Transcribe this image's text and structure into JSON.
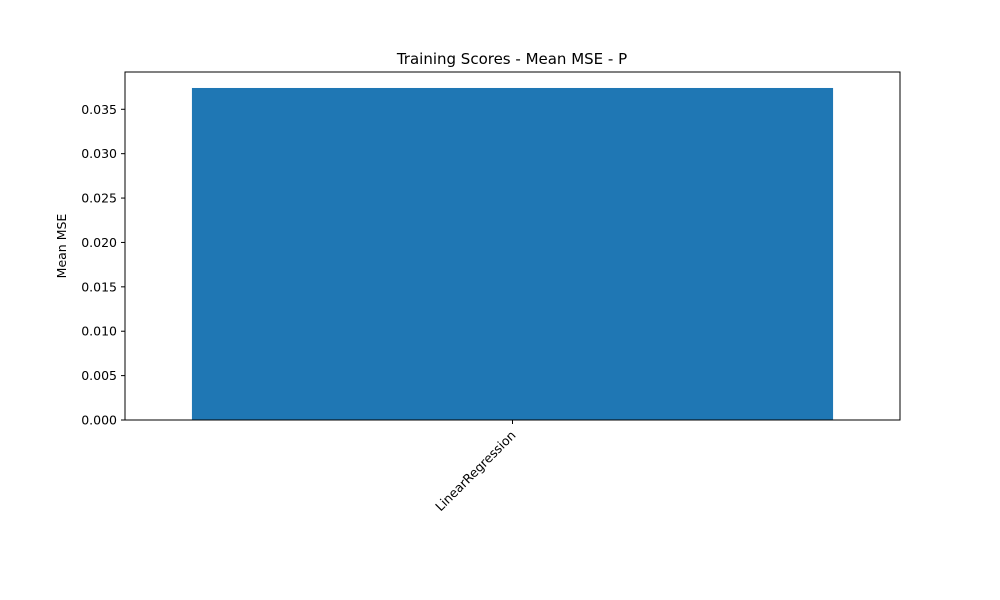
{
  "chart_data": {
    "type": "bar",
    "title": "Training Scores - Mean MSE - P",
    "xlabel": "",
    "ylabel": "Mean MSE",
    "categories": [
      "LinearRegression"
    ],
    "values": [
      0.0374
    ],
    "ylim": [
      0,
      0.0392
    ],
    "yticks": [
      0.0,
      0.005,
      0.01,
      0.015,
      0.02,
      0.025,
      0.03,
      0.035
    ],
    "ytick_labels": [
      "0.000",
      "0.005",
      "0.010",
      "0.015",
      "0.020",
      "0.025",
      "0.030",
      "0.035"
    ],
    "bar_color": "#1f77b4",
    "grid": false,
    "legend": "none"
  }
}
